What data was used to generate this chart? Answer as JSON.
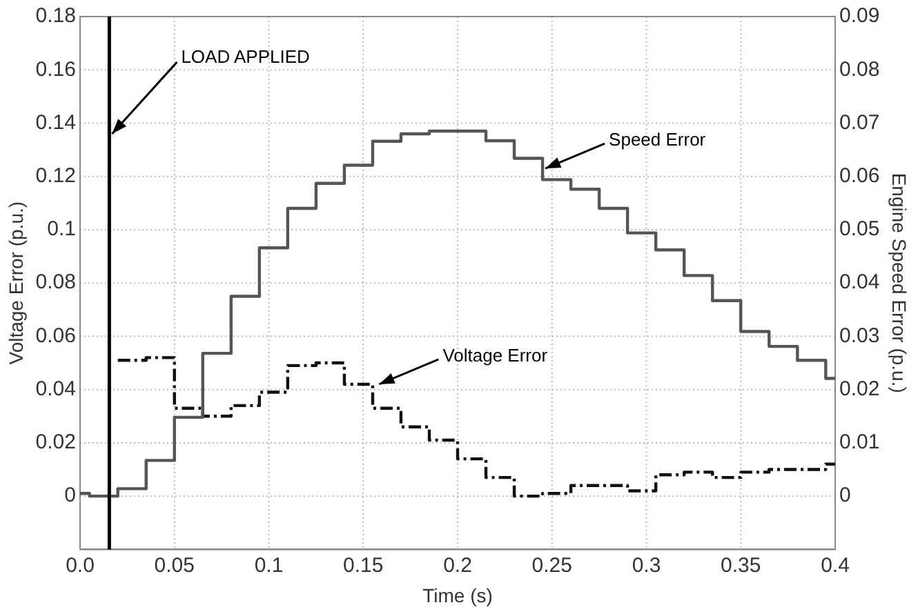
{
  "chart_data": {
    "type": "step",
    "xlabel": "Time (s)",
    "ylabel": "Voltage Error (p.u.)",
    "y2label": "Engine Speed Error (p.u.)",
    "xlim": [
      0,
      0.4
    ],
    "xticks": [
      {
        "value": 0,
        "label": "0.0"
      },
      0.05,
      0.1,
      0.15,
      0.2,
      0.25,
      0.3,
      0.35,
      0.4
    ],
    "ylim": [
      -0.02,
      0.18
    ],
    "yticks": [
      0,
      0.02,
      0.04,
      0.06,
      0.08,
      0.1,
      0.12,
      0.14,
      0.16,
      0.18
    ],
    "y2lim": [
      -0.01,
      0.09
    ],
    "y2ticks": [
      0,
      0.01,
      0.02,
      0.03,
      0.04,
      0.05,
      0.06,
      0.07,
      0.08,
      0.09
    ],
    "grid": true,
    "legend": false,
    "marker": "none",
    "series": [
      {
        "type": "step",
        "axis": "y2",
        "color": "#555555",
        "line_style": "solid",
        "x": [
          0,
          0.005,
          0.02,
          0.035,
          0.05,
          0.065,
          0.08,
          0.095,
          0.11,
          0.125,
          0.14,
          0.155,
          0.17,
          0.185,
          0.215,
          0.23,
          0.245,
          0.26,
          0.275,
          0.29,
          0.305,
          0.32,
          0.335,
          0.35,
          0.365,
          0.38,
          0.395,
          0.4
        ],
        "values": [
          0.0005,
          0,
          0.0014,
          0.0067,
          0.0148,
          0.0268,
          0.0375,
          0.0466,
          0.054,
          0.0587,
          0.0621,
          0.0666,
          0.068,
          0.0685,
          0.0667,
          0.0634,
          0.0594,
          0.0576,
          0.054,
          0.0494,
          0.0462,
          0.0414,
          0.0367,
          0.0309,
          0.0281,
          0.0255,
          0.0221,
          0.0221
        ]
      },
      {
        "type": "step",
        "color": "#111111",
        "line_style": "dashed",
        "x": [
          0.02,
          0.035,
          0.05,
          0.065,
          0.08,
          0.095,
          0.11,
          0.125,
          0.14,
          0.155,
          0.17,
          0.185,
          0.2,
          0.215,
          0.23,
          0.245,
          0.26,
          0.29,
          0.305,
          0.32,
          0.335,
          0.35,
          0.365,
          0.395,
          0.4
        ],
        "values": [
          0.051,
          0.052,
          0.033,
          0.03,
          0.034,
          0.039,
          0.049,
          0.05,
          0.042,
          0.033,
          0.026,
          0.021,
          0.014,
          0.007,
          0,
          0.001,
          0.004,
          0.002,
          0.008,
          0.009,
          0.007,
          0.009,
          0.01,
          0.012,
          0.012
        ]
      }
    ],
    "ref_lines": [
      {
        "axis": "x",
        "value": 0.0155,
        "label": "LOAD APPLIED",
        "color": "#000000",
        "line_style": "solid"
      }
    ],
    "annotations": [
      {
        "text": "Speed Error",
        "x": 0.245,
        "y": 0.123
      },
      {
        "text": "Voltage Error",
        "x": 0.157,
        "y": 0.042
      }
    ]
  }
}
